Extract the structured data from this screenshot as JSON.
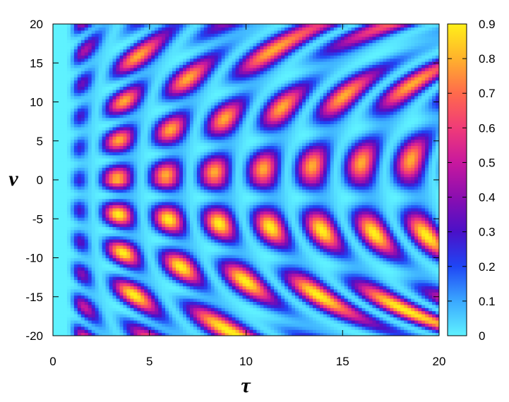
{
  "chart_data": {
    "type": "heatmap",
    "title": "",
    "xlabel": "τ",
    "ylabel": "ν",
    "xlim": [
      0,
      20
    ],
    "ylim": [
      -20,
      20
    ],
    "x_ticks": [
      "0",
      "5",
      "10",
      "15",
      "20"
    ],
    "y_ticks": [
      "20",
      "15",
      "10",
      "5",
      "0",
      "-5",
      "-10",
      "-15",
      "-20"
    ],
    "colorbar": {
      "range": [
        0,
        0.9
      ],
      "ticks": [
        "0.9",
        "0.8",
        "0.7",
        "0.6",
        "0.5",
        "0.4",
        "0.3",
        "0.2",
        "0.1",
        "0"
      ],
      "colors": [
        "#5ff2ff",
        "#3aa8ff",
        "#1f46f5",
        "#4a10c8",
        "#8b0eb0",
        "#c8189e",
        "#f03b78",
        "#ff6a4c",
        "#ffb22c",
        "#fff019"
      ]
    },
    "grid": false,
    "legend": "colorbar-right"
  }
}
